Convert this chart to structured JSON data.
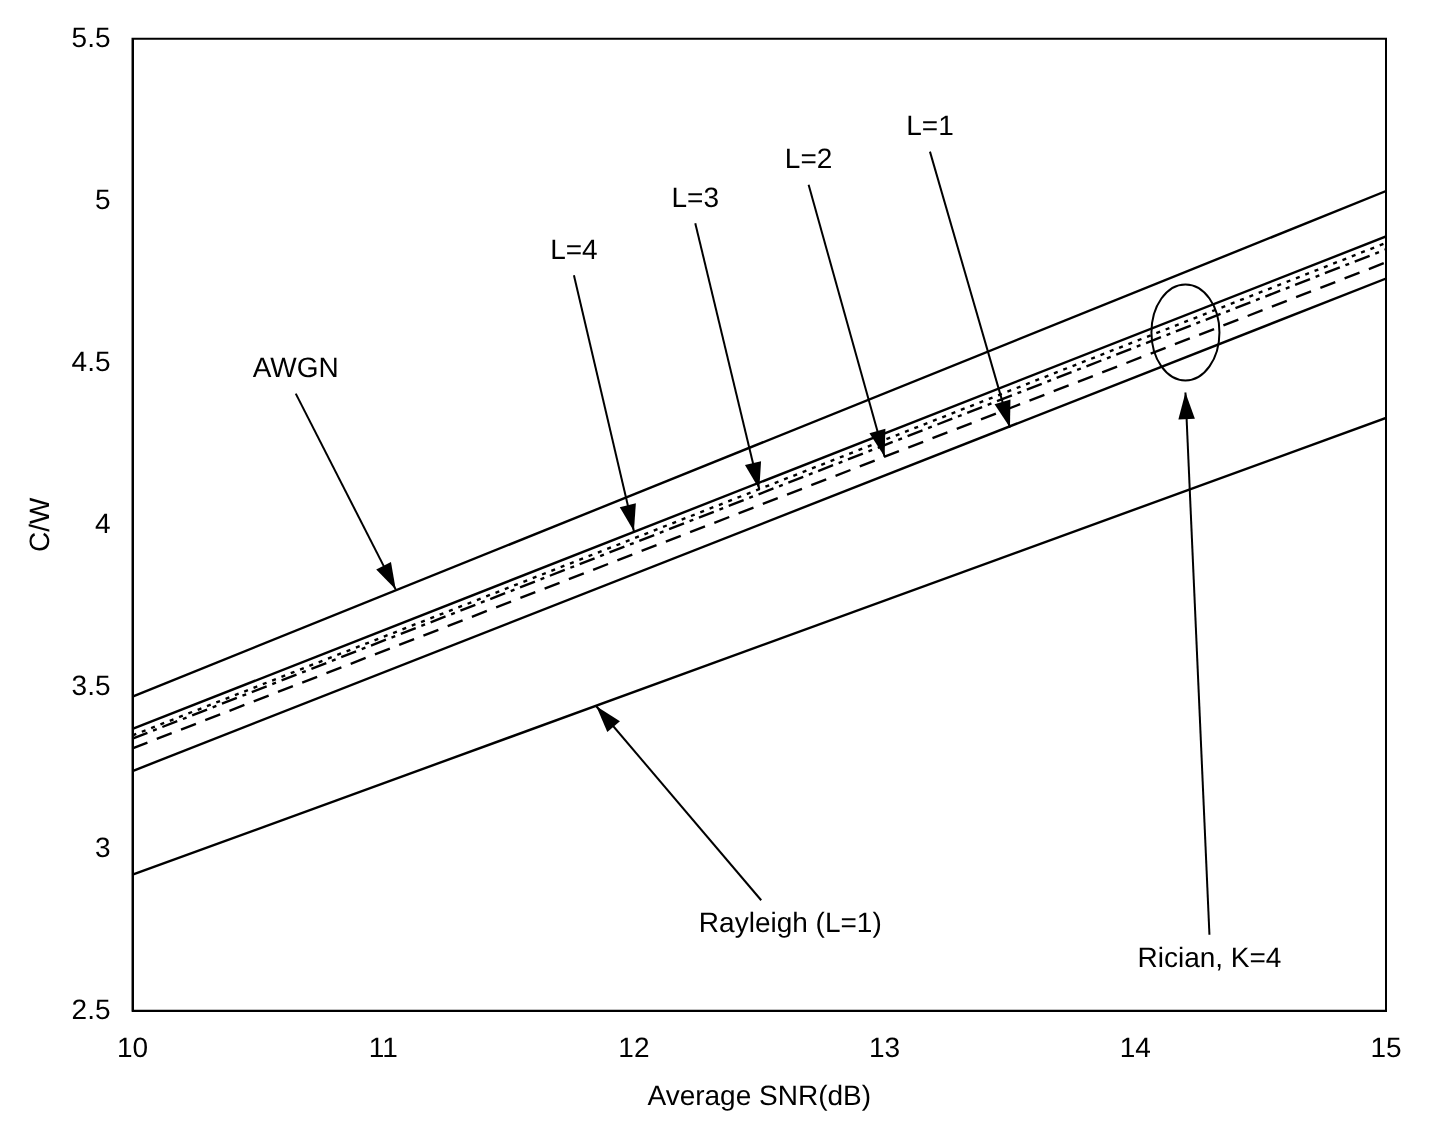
{
  "chart_data": {
    "type": "line",
    "xlabel": "Average SNR(dB)",
    "ylabel": "C/W",
    "x": [
      10,
      15
    ],
    "series": [
      {
        "color": "#000000",
        "values": [
          3.47,
          5.03
        ],
        "line_style": "solid"
      },
      {
        "color": "#000000",
        "values": [
          3.37,
          4.89
        ],
        "line_style": "solid"
      },
      {
        "color": "#000000",
        "values": [
          3.35,
          4.87
        ],
        "line_style": "dotted"
      },
      {
        "color": "#000000",
        "values": [
          3.34,
          4.85
        ],
        "line_style": "dashdot"
      },
      {
        "color": "#000000",
        "values": [
          3.31,
          4.81
        ],
        "line_style": "dashed"
      },
      {
        "color": "#000000",
        "values": [
          3.24,
          4.76
        ],
        "line_style": "solid"
      },
      {
        "color": "#000000",
        "values": [
          2.92,
          4.33
        ],
        "line_style": "solid"
      }
    ],
    "xlim": [
      10,
      15
    ],
    "xticks": [
      10,
      11,
      12,
      13,
      14,
      15
    ],
    "ylim": [
      2.5,
      5.5
    ],
    "yticks": [
      2.5,
      3,
      3.5,
      4,
      4.5,
      5,
      5.5
    ],
    "grid": false,
    "legend": false,
    "marker": "none",
    "annotations": [
      {
        "text": "AWGN",
        "x": 11.05,
        "y": 3.8
      },
      {
        "text": "L=4",
        "x": 12,
        "y": 3.98
      },
      {
        "text": "L=3",
        "x": 12.5,
        "y": 4.11
      },
      {
        "text": "L=2",
        "x": 13,
        "y": 4.21
      },
      {
        "text": "L=1",
        "x": 13.5,
        "y": 4.3
      },
      {
        "text": "Rayleigh (L=1)",
        "x": 11.85,
        "y": 3.44
      },
      "Rician, K=4"
    ]
  }
}
